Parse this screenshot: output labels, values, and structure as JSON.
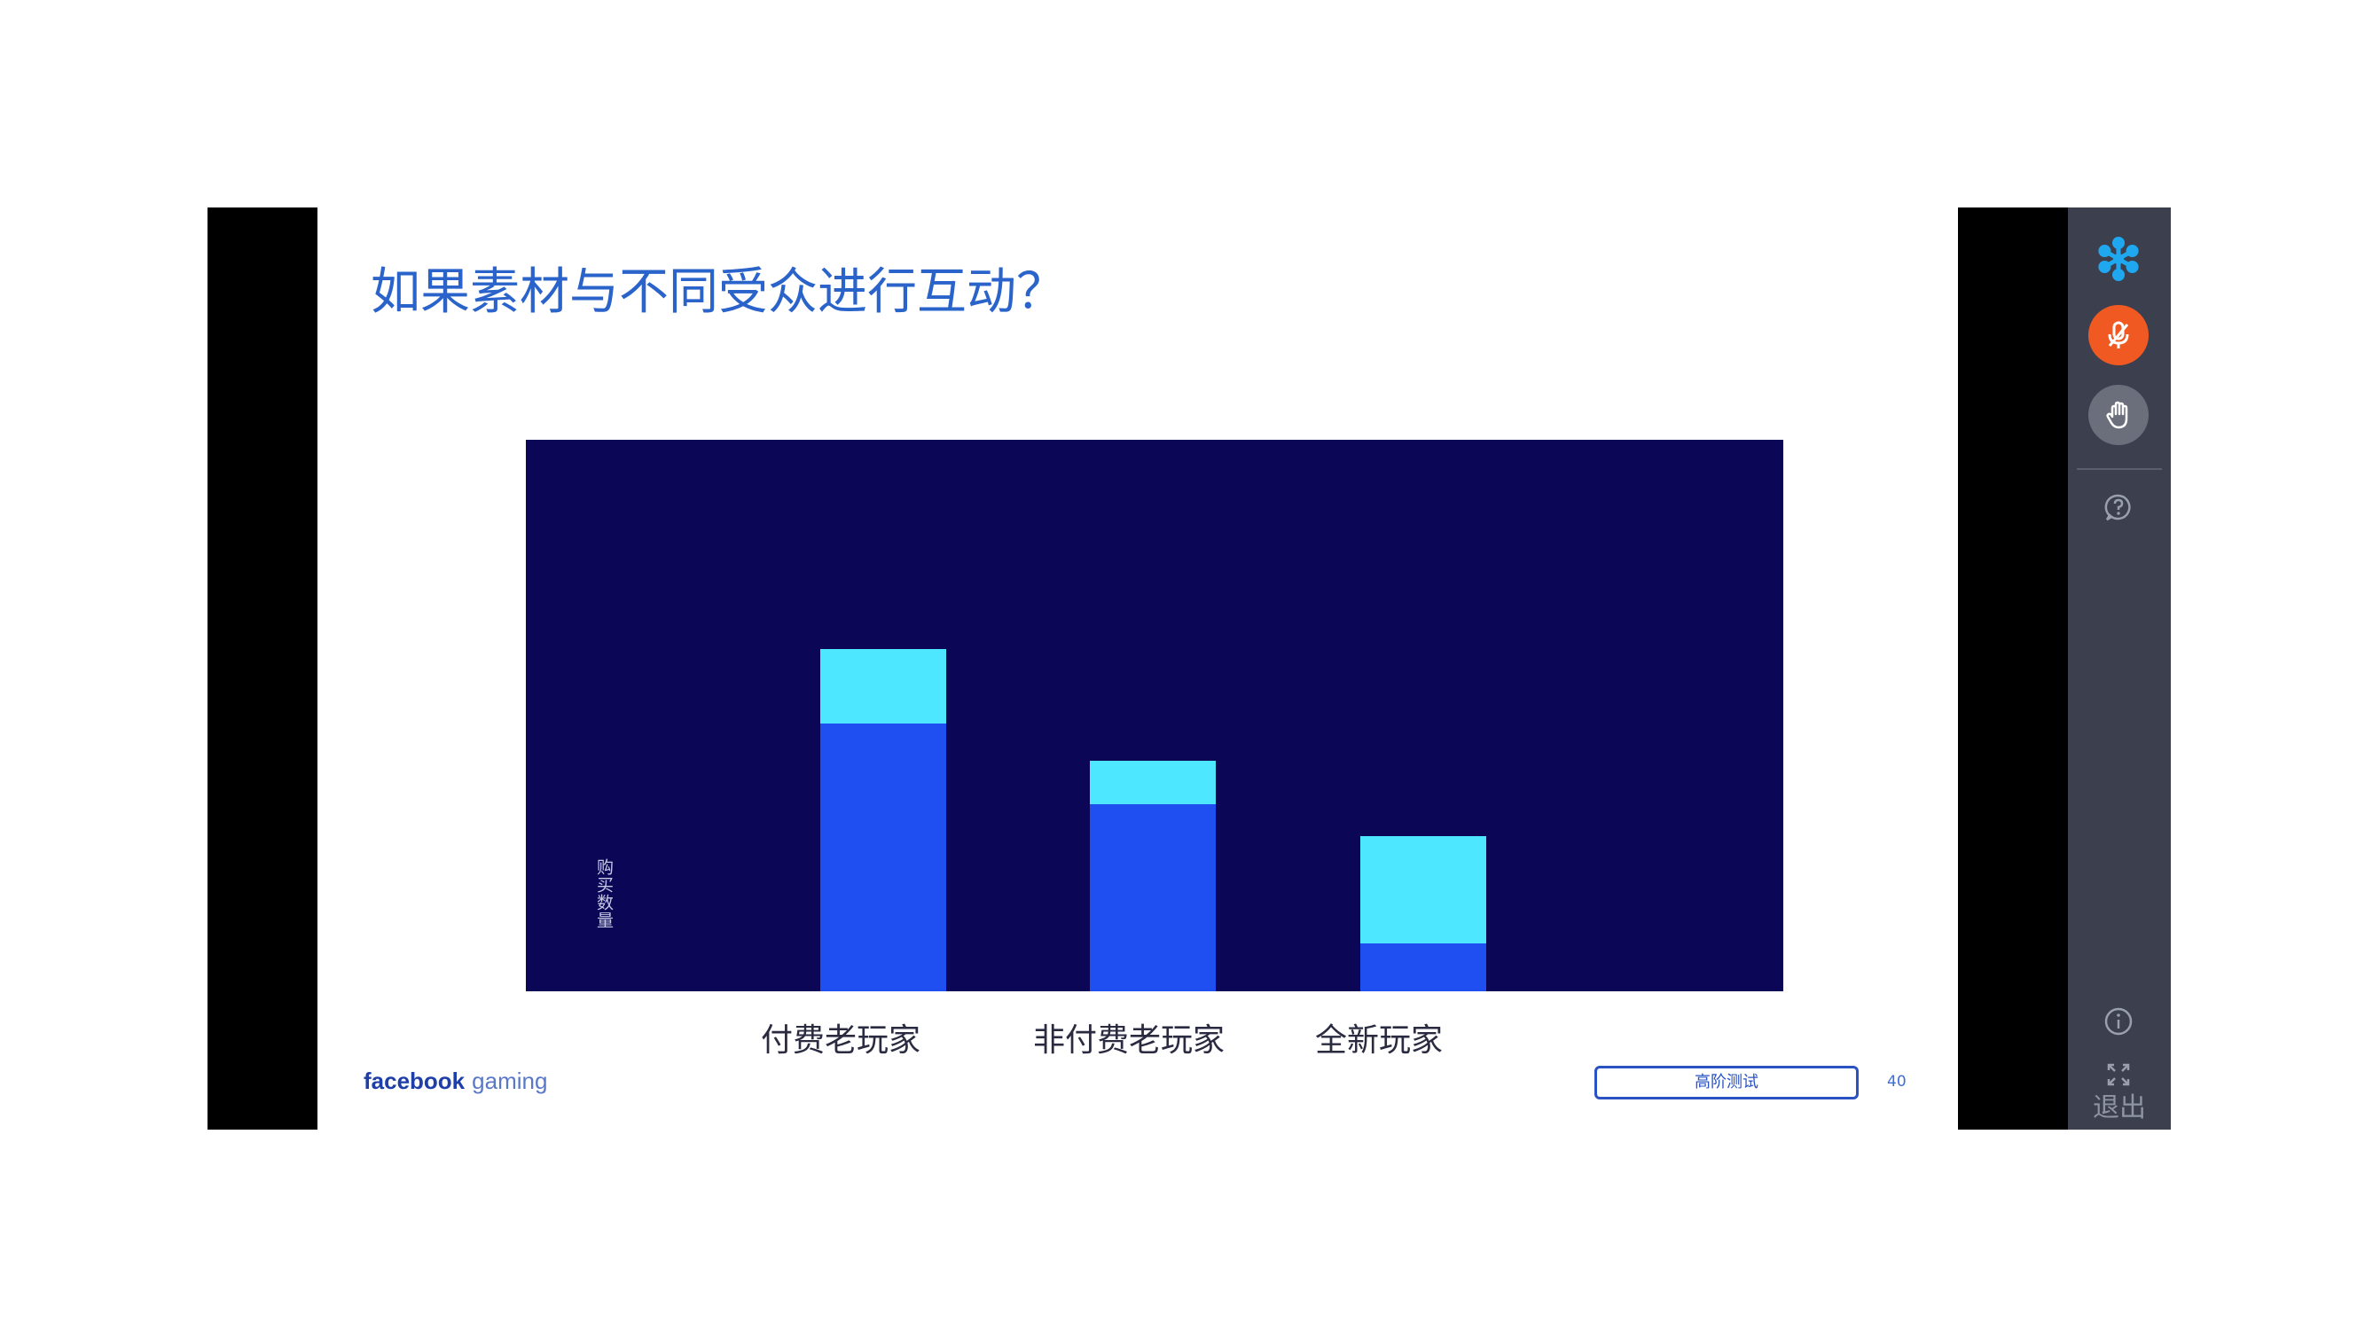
{
  "slide": {
    "title": "如果素材与不同受众进行互动？",
    "y_axis_label": "购买数量",
    "brand_bold": "facebook",
    "brand_light": "gaming",
    "tag_button": "高阶测试",
    "page_number": "40"
  },
  "chart_data": {
    "type": "bar",
    "stacked": true,
    "categories": [
      "付费老玩家",
      "非付费老玩家",
      "全新玩家"
    ],
    "series": [
      {
        "values": [
          5,
          3.5,
          0.9
        ],
        "color": "#1f4ff0"
      },
      {
        "values": [
          1.4,
          0.8,
          2.0
        ],
        "color": "#4de8ff"
      }
    ],
    "ylabel": "购买数量",
    "ylim": [
      0,
      10.3
    ],
    "background": "#0c0656",
    "grid": false
  },
  "toolbar": {
    "logo_icon": "snowflake-icon",
    "mic_icon": "microphone-icon",
    "hand_icon": "raise-hand-icon",
    "help_icon": "question-icon",
    "info_icon": "info-icon",
    "fullscreen_icon": "fullscreen-icon",
    "exit_label": "退出",
    "logo_color": "#1fa8f0",
    "mic_color": "#f05a22"
  }
}
